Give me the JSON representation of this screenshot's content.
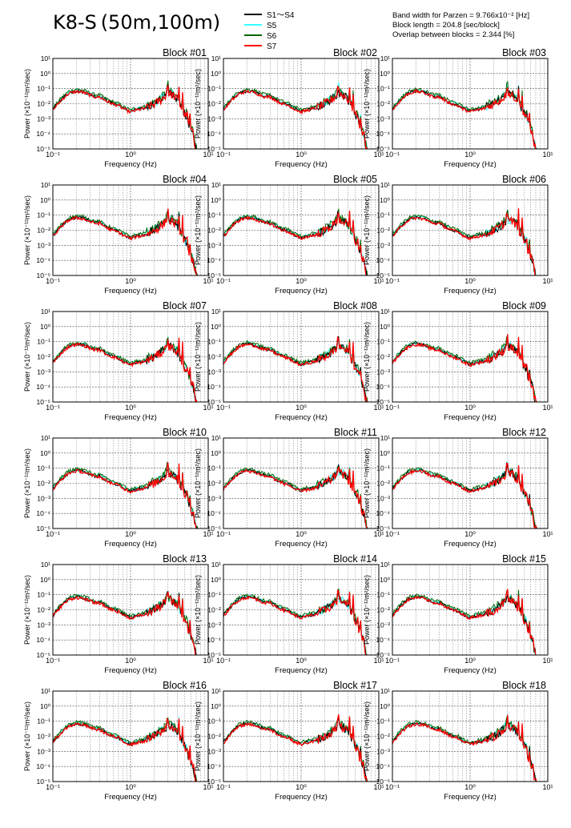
{
  "header": {
    "title": "K8-S (50m,100m)",
    "params": [
      "Band width for Parzen = 9.766x10⁻² [Hz]",
      "Block length = 204.8 [sec/block]",
      "Overlap between blocks = 2.344 [%]"
    ]
  },
  "chart_data": {
    "type": "line",
    "x_scale": "log",
    "y_scale": "log",
    "xlim": [
      0.1,
      10
    ],
    "ylim": [
      1e-05,
      10
    ],
    "xlabel": "Frequency (Hz)",
    "ylabel": "Power (×10⁻¹²m²/sec)",
    "x_tick_labels": [
      "10⁻¹",
      "10⁰",
      "10¹"
    ],
    "y_tick_labels": [
      "10⁻⁵",
      "10⁻⁴",
      "10⁻³",
      "10⁻²",
      "10⁻¹",
      "10⁰",
      "10¹"
    ],
    "grid": true,
    "legend_position": "top-center",
    "series": [
      {
        "name": "S1〜S4",
        "color": "#000000"
      },
      {
        "name": "S5",
        "color": "#33ffff"
      },
      {
        "name": "S6",
        "color": "#006600"
      },
      {
        "name": "S7",
        "color": "#ff0000"
      }
    ],
    "x": [
      0.1,
      0.13,
      0.16,
      0.2,
      0.25,
      0.3,
      0.35,
      0.4,
      0.5,
      0.6,
      0.7,
      0.8,
      1.0,
      1.2,
      1.5,
      2.0,
      2.5,
      3.0,
      3.5,
      4.0,
      5.0,
      6.0,
      7.0
    ],
    "typical_values": [
      0.004,
      0.02,
      0.05,
      0.07,
      0.06,
      0.04,
      0.03,
      0.03,
      0.015,
      0.01,
      0.008,
      0.005,
      0.003,
      0.004,
      0.005,
      0.01,
      0.02,
      0.05,
      0.04,
      0.02,
      0.002,
      0.0002,
      1e-05
    ],
    "panels": [
      {
        "title": "Block #01"
      },
      {
        "title": "Block #02"
      },
      {
        "title": "Block #03"
      },
      {
        "title": "Block #04"
      },
      {
        "title": "Block #05"
      },
      {
        "title": "Block #06"
      },
      {
        "title": "Block #07"
      },
      {
        "title": "Block #08"
      },
      {
        "title": "Block #09"
      },
      {
        "title": "Block #10"
      },
      {
        "title": "Block #11"
      },
      {
        "title": "Block #12"
      },
      {
        "title": "Block #13"
      },
      {
        "title": "Block #14"
      },
      {
        "title": "Block #15"
      },
      {
        "title": "Block #16"
      },
      {
        "title": "Block #17"
      },
      {
        "title": "Block #18"
      }
    ]
  }
}
